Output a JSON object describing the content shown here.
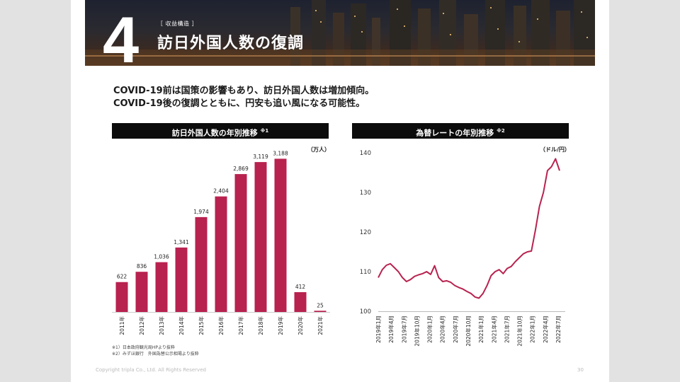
{
  "section": {
    "number": "4",
    "tag": "［ 収益構造 ］",
    "title": "訪日外国人数の復調"
  },
  "lead": {
    "line1": "COVID-19前は国策の影響もあり、訪日外国人数は増加傾向。",
    "line2": "COVID-19後の復調とともに、円安も追い風になる可能性。"
  },
  "colors": {
    "accent": "#b8224f",
    "header_bg": "#0c0c0c"
  },
  "chart_data": [
    {
      "type": "bar",
      "title": "訪日外国人数の年別推移",
      "note_mark": "※1",
      "unit": "（万人）",
      "categories": [
        "2011年",
        "2012年",
        "2013年",
        "2014年",
        "2015年",
        "2016年",
        "2017年",
        "2018年",
        "2019年",
        "2020年",
        "2021年"
      ],
      "values": [
        622,
        836,
        1036,
        1341,
        1974,
        2404,
        2869,
        3119,
        3188,
        412,
        25
      ],
      "value_labels": [
        "622",
        "836",
        "1,036",
        "1,341",
        "1,974",
        "2,404",
        "2,869",
        "3,119",
        "3,188",
        "412",
        "25"
      ],
      "ylim": [
        0,
        3400
      ]
    },
    {
      "type": "line",
      "title": "為替レートの年別推移",
      "note_mark": "※2",
      "unit": "（ドル/円）",
      "ylim": [
        100,
        140
      ],
      "y_ticks": [
        "100",
        "110",
        "120",
        "130",
        "140"
      ],
      "x_ticks": [
        "2019年1月",
        "2019年4月",
        "2019年7月",
        "2019年10月",
        "2020年1月",
        "2020年4月",
        "2020年7月",
        "2020年10月",
        "2021年1月",
        "2021年4月",
        "2021年7月",
        "2021年10月",
        "2022年1月",
        "2022年4月",
        "2022年7月"
      ],
      "series": [
        {
          "values": [
            108.5,
            110.5,
            111.6,
            112.0,
            111.0,
            110.0,
            108.5,
            107.5,
            108.0,
            108.8,
            109.2,
            109.5,
            110.0,
            109.3,
            111.5,
            108.5,
            107.5,
            107.7,
            107.3,
            106.5,
            106.0,
            105.6,
            105.0,
            104.5,
            103.6,
            103.3,
            104.5,
            106.5,
            109.0,
            110.0,
            110.5,
            109.5,
            110.8,
            111.3,
            112.5,
            113.5,
            114.5,
            115.0,
            115.2,
            120.5,
            126.5,
            130.0,
            135.5,
            136.5,
            138.5,
            135.5
          ]
        }
      ]
    }
  ],
  "footnotes": {
    "note1": "※1）日本政府観光局HPより抜粋",
    "note2": "※2）みずほ銀行　外国為替公示相場より抜粋"
  },
  "footer": {
    "copyright": "Copyright tripla Co., Ltd. All Rights Reserved",
    "page": "30"
  }
}
